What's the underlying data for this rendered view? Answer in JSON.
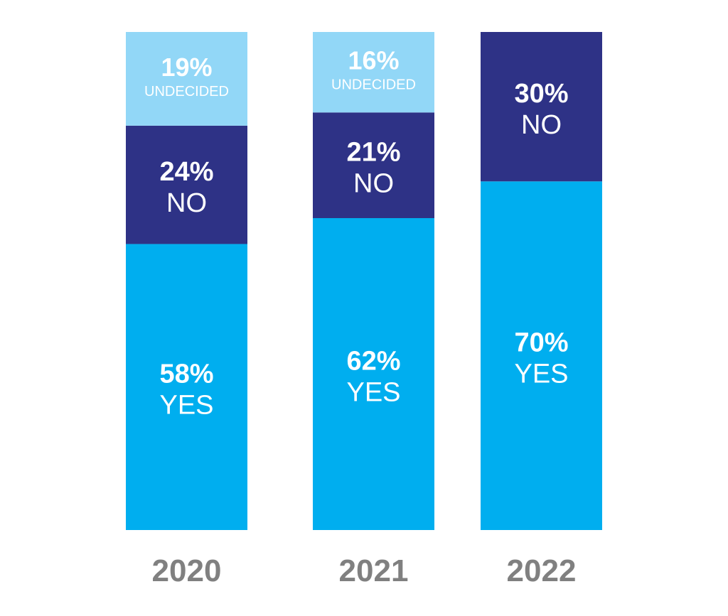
{
  "chart_data": {
    "type": "bar",
    "stacked": true,
    "normalized": true,
    "categories": [
      "2020",
      "2021",
      "2022"
    ],
    "series": [
      {
        "name": "YES",
        "values": [
          58,
          62,
          70
        ],
        "labels": [
          "58%",
          "62%",
          "70%"
        ],
        "color": "#00aeef"
      },
      {
        "name": "NO",
        "values": [
          24,
          21,
          30
        ],
        "labels": [
          "24%",
          "21%",
          "30%"
        ],
        "color": "#2e3286"
      },
      {
        "name": "UNDECIDED",
        "values": [
          19,
          16,
          0
        ],
        "labels": [
          "19%",
          "16%",
          ""
        ],
        "color": "#92d7f7"
      }
    ],
    "category_label_color": "#808080",
    "ylim": [
      0,
      100
    ],
    "grid": false,
    "legend": "none"
  }
}
